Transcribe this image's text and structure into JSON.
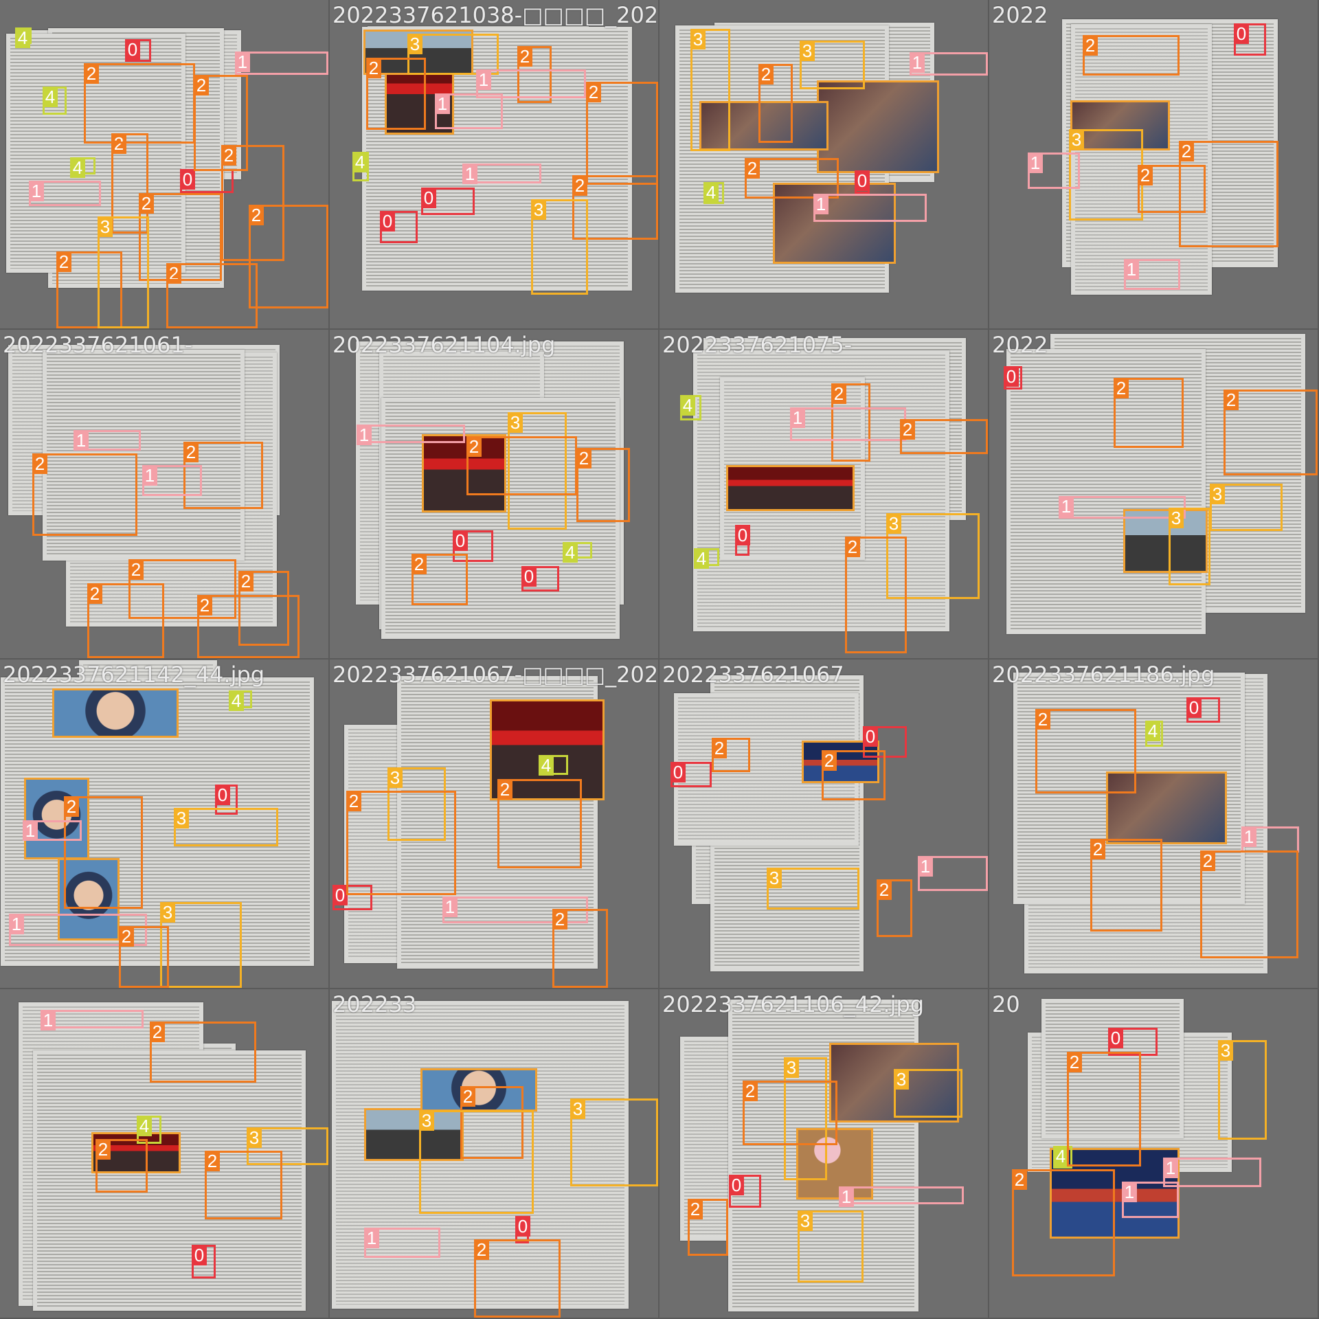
{
  "view": {
    "title": ""
  },
  "class_colors": {
    "0": "#e8363f",
    "1": "#f4a0a8",
    "2": "#f07a1e",
    "3": "#f5b125",
    "4": "#c7d63a"
  },
  "tiles": [
    {
      "label": "",
      "photos": []
    },
    {
      "label": "2022337621038-□□□□_202",
      "photos": [
        "crowd",
        "bike"
      ]
    },
    {
      "label": "",
      "photos": [
        "photo",
        "photo",
        "photo"
      ]
    },
    {
      "label": "2022",
      "photos": [
        "photo"
      ]
    },
    {
      "label": "2022337621061-",
      "photos": []
    },
    {
      "label": "2022337621104.jpg",
      "photos": [
        "crowd"
      ]
    },
    {
      "label": "2022337621075-",
      "photos": [
        "crowd"
      ]
    },
    {
      "label": "2022",
      "photos": [
        "bike"
      ]
    },
    {
      "label": "2022337621142_44.jpg",
      "photos": [
        "face",
        "face",
        "face"
      ]
    },
    {
      "label": "2022337621067-□□□□_202",
      "photos": [
        "crowd"
      ]
    },
    {
      "label": "2022337621067",
      "photos": [
        "stage"
      ]
    },
    {
      "label": "2022337621186.jpg",
      "photos": [
        "photo"
      ]
    },
    {
      "label": "",
      "photos": [
        "crowd"
      ]
    },
    {
      "label": "202233",
      "photos": [
        "bike",
        "face"
      ]
    },
    {
      "label": "2022337621106_42.jpg",
      "photos": [
        "tree",
        "photo"
      ]
    },
    {
      "label": "20",
      "photos": [
        "stage"
      ]
    }
  ],
  "detections": [
    {
      "tile": 0,
      "cls": "2",
      "label": "2"
    },
    {
      "tile": 0,
      "cls": "2",
      "label": "2"
    },
    {
      "tile": 0,
      "cls": "2",
      "label": "2"
    },
    {
      "tile": 0,
      "cls": "2",
      "label": "2"
    },
    {
      "tile": 0,
      "cls": "4",
      "label": "4"
    },
    {
      "tile": 0,
      "cls": "4",
      "label": "4"
    },
    {
      "tile": 0,
      "cls": "0",
      "label": "0"
    },
    {
      "tile": 0,
      "cls": "0",
      "label": "0"
    },
    {
      "tile": 0,
      "cls": "1",
      "label": "1"
    },
    {
      "tile": 0,
      "cls": "1",
      "label": "1"
    },
    {
      "tile": 0,
      "cls": "2",
      "label": "2"
    },
    {
      "tile": 0,
      "cls": "2",
      "label": "2"
    },
    {
      "tile": 0,
      "cls": "2",
      "label": "2"
    },
    {
      "tile": 0,
      "cls": "2",
      "label": "2"
    },
    {
      "tile": 0,
      "cls": "4",
      "label": "4"
    },
    {
      "tile": 0,
      "cls": "3",
      "label": "3"
    },
    {
      "tile": 1,
      "cls": "4",
      "label": "4"
    },
    {
      "tile": 1,
      "cls": "3",
      "label": "3"
    },
    {
      "tile": 1,
      "cls": "1",
      "label": "1"
    },
    {
      "tile": 1,
      "cls": "2",
      "label": "2"
    },
    {
      "tile": 1,
      "cls": "2",
      "label": "2"
    },
    {
      "tile": 1,
      "cls": "2",
      "label": "2"
    },
    {
      "tile": 1,
      "cls": "0",
      "label": "0"
    },
    {
      "tile": 1,
      "cls": "1",
      "label": "1"
    },
    {
      "tile": 1,
      "cls": "3",
      "label": "3"
    },
    {
      "tile": 1,
      "cls": "2",
      "label": "2"
    },
    {
      "tile": 1,
      "cls": "0",
      "label": "0"
    },
    {
      "tile": 1,
      "cls": "1",
      "label": "1"
    },
    {
      "tile": 2,
      "cls": "3",
      "label": "3"
    },
    {
      "tile": 2,
      "cls": "2",
      "label": "2"
    },
    {
      "tile": 2,
      "cls": "3",
      "label": "3"
    },
    {
      "tile": 2,
      "cls": "0",
      "label": "0"
    },
    {
      "tile": 2,
      "cls": "1",
      "label": "1"
    },
    {
      "tile": 2,
      "cls": "4",
      "label": "4"
    },
    {
      "tile": 2,
      "cls": "2",
      "label": "2"
    },
    {
      "tile": 2,
      "cls": "1",
      "label": "1"
    },
    {
      "tile": 3,
      "cls": "3",
      "label": "3"
    },
    {
      "tile": 3,
      "cls": "1",
      "label": "1"
    },
    {
      "tile": 3,
      "cls": "2",
      "label": "2"
    },
    {
      "tile": 3,
      "cls": "0",
      "label": "0"
    },
    {
      "tile": 3,
      "cls": "1",
      "label": "1"
    },
    {
      "tile": 3,
      "cls": "2",
      "label": "2"
    },
    {
      "tile": 3,
      "cls": "2",
      "label": "2"
    },
    {
      "tile": 4,
      "cls": "1",
      "label": "1"
    },
    {
      "tile": 4,
      "cls": "2",
      "label": "2"
    },
    {
      "tile": 4,
      "cls": "2",
      "label": "2"
    },
    {
      "tile": 4,
      "cls": "2",
      "label": "2"
    },
    {
      "tile": 4,
      "cls": "2",
      "label": "2"
    },
    {
      "tile": 4,
      "cls": "2",
      "label": "2"
    },
    {
      "tile": 4,
      "cls": "1",
      "label": "1"
    },
    {
      "tile": 4,
      "cls": "2",
      "label": "2"
    },
    {
      "tile": 5,
      "cls": "0",
      "label": "0"
    },
    {
      "tile": 5,
      "cls": "3",
      "label": "3"
    },
    {
      "tile": 5,
      "cls": "4",
      "label": "4"
    },
    {
      "tile": 5,
      "cls": "1",
      "label": "1"
    },
    {
      "tile": 5,
      "cls": "2",
      "label": "2"
    },
    {
      "tile": 5,
      "cls": "2",
      "label": "2"
    },
    {
      "tile": 5,
      "cls": "0",
      "label": "0"
    },
    {
      "tile": 5,
      "cls": "2",
      "label": "2"
    },
    {
      "tile": 6,
      "cls": "2",
      "label": "2"
    },
    {
      "tile": 6,
      "cls": "3",
      "label": "3"
    },
    {
      "tile": 6,
      "cls": "4",
      "label": "4"
    },
    {
      "tile": 6,
      "cls": "0",
      "label": "0"
    },
    {
      "tile": 6,
      "cls": "1",
      "label": "1"
    },
    {
      "tile": 6,
      "cls": "2",
      "label": "2"
    },
    {
      "tile": 6,
      "cls": "2",
      "label": "2"
    },
    {
      "tile": 6,
      "cls": "4",
      "label": "4"
    },
    {
      "tile": 7,
      "cls": "3",
      "label": "3"
    },
    {
      "tile": 7,
      "cls": "0",
      "label": "0"
    },
    {
      "tile": 7,
      "cls": "1",
      "label": "1"
    },
    {
      "tile": 7,
      "cls": "2",
      "label": "2"
    },
    {
      "tile": 7,
      "cls": "3",
      "label": "3"
    },
    {
      "tile": 7,
      "cls": "2",
      "label": "2"
    },
    {
      "tile": 8,
      "cls": "3",
      "label": "3"
    },
    {
      "tile": 8,
      "cls": "0",
      "label": "0"
    },
    {
      "tile": 8,
      "cls": "1",
      "label": "1"
    },
    {
      "tile": 8,
      "cls": "2",
      "label": "2"
    },
    {
      "tile": 8,
      "cls": "2",
      "label": "2"
    },
    {
      "tile": 8,
      "cls": "3",
      "label": "3"
    },
    {
      "tile": 8,
      "cls": "4",
      "label": "4"
    },
    {
      "tile": 8,
      "cls": "1",
      "label": "1"
    },
    {
      "tile": 9,
      "cls": "4",
      "label": "4"
    },
    {
      "tile": 9,
      "cls": "0",
      "label": "0"
    },
    {
      "tile": 9,
      "cls": "3",
      "label": "3"
    },
    {
      "tile": 9,
      "cls": "1",
      "label": "1"
    },
    {
      "tile": 9,
      "cls": "2",
      "label": "2"
    },
    {
      "tile": 9,
      "cls": "2",
      "label": "2"
    },
    {
      "tile": 9,
      "cls": "2",
      "label": "2"
    },
    {
      "tile": 10,
      "cls": "0",
      "label": "0"
    },
    {
      "tile": 10,
      "cls": "1",
      "label": "1"
    },
    {
      "tile": 10,
      "cls": "2",
      "label": "2"
    },
    {
      "tile": 10,
      "cls": "3",
      "label": "3"
    },
    {
      "tile": 10,
      "cls": "2",
      "label": "2"
    },
    {
      "tile": 10,
      "cls": "2",
      "label": "2"
    },
    {
      "tile": 10,
      "cls": "0",
      "label": "0"
    },
    {
      "tile": 11,
      "cls": "0",
      "label": "0"
    },
    {
      "tile": 11,
      "cls": "1",
      "label": "1"
    },
    {
      "tile": 11,
      "cls": "2",
      "label": "2"
    },
    {
      "tile": 11,
      "cls": "2",
      "label": "2"
    },
    {
      "tile": 11,
      "cls": "4",
      "label": "4"
    },
    {
      "tile": 11,
      "cls": "2",
      "label": "2"
    },
    {
      "tile": 12,
      "cls": "4",
      "label": "4"
    },
    {
      "tile": 12,
      "cls": "0",
      "label": "0"
    },
    {
      "tile": 12,
      "cls": "3",
      "label": "3"
    },
    {
      "tile": 12,
      "cls": "1",
      "label": "1"
    },
    {
      "tile": 12,
      "cls": "2",
      "label": "2"
    },
    {
      "tile": 12,
      "cls": "2",
      "label": "2"
    },
    {
      "tile": 12,
      "cls": "2",
      "label": "2"
    },
    {
      "tile": 13,
      "cls": "2",
      "label": "2"
    },
    {
      "tile": 13,
      "cls": "0",
      "label": "0"
    },
    {
      "tile": 13,
      "cls": "3",
      "label": "3"
    },
    {
      "tile": 13,
      "cls": "1",
      "label": "1"
    },
    {
      "tile": 13,
      "cls": "3",
      "label": "3"
    },
    {
      "tile": 13,
      "cls": "2",
      "label": "2"
    },
    {
      "tile": 14,
      "cls": "0",
      "label": "0"
    },
    {
      "tile": 14,
      "cls": "3",
      "label": "3"
    },
    {
      "tile": 14,
      "cls": "1",
      "label": "1"
    },
    {
      "tile": 14,
      "cls": "3",
      "label": "3"
    },
    {
      "tile": 14,
      "cls": "2",
      "label": "2"
    },
    {
      "tile": 14,
      "cls": "2",
      "label": "2"
    },
    {
      "tile": 14,
      "cls": "3",
      "label": "3"
    },
    {
      "tile": 15,
      "cls": "4",
      "label": "4"
    },
    {
      "tile": 15,
      "cls": "0",
      "label": "0"
    },
    {
      "tile": 15,
      "cls": "1",
      "label": "1"
    },
    {
      "tile": 15,
      "cls": "3",
      "label": "3"
    },
    {
      "tile": 15,
      "cls": "2",
      "label": "2"
    },
    {
      "tile": 15,
      "cls": "2",
      "label": "2"
    },
    {
      "tile": 15,
      "cls": "1",
      "label": "1"
    }
  ]
}
